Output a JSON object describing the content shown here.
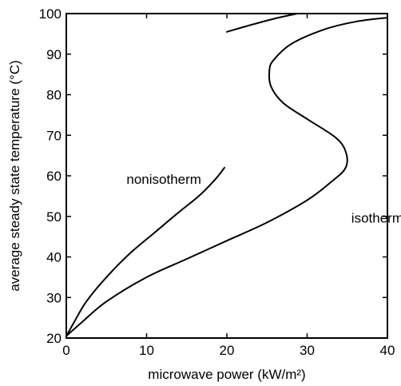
{
  "chart_data": {
    "type": "line",
    "title": "",
    "xlabel": "microwave power (kW/m²)",
    "ylabel": "average steady state temperature (°C)",
    "xlim": [
      0,
      40
    ],
    "ylim": [
      20,
      100
    ],
    "xticks": [
      0,
      10,
      20,
      30,
      40
    ],
    "yticks": [
      20,
      30,
      40,
      50,
      60,
      70,
      80,
      90,
      100
    ],
    "grid": false,
    "legend": "none",
    "series": [
      {
        "annotation": "nonisotherm",
        "x": [
          0,
          1,
          2.5,
          5,
          8,
          11,
          14,
          16.5,
          18.5,
          19.7
        ],
        "y": [
          20.5,
          24,
          29,
          35,
          41,
          46,
          51,
          55,
          59,
          62
        ],
        "x_upper_branch": [
          20,
          23,
          26,
          28.8
        ],
        "y_upper_branch": [
          95.5,
          97.2,
          98.8,
          100
        ]
      },
      {
        "annotation": "isotherm",
        "x": [
          0,
          2,
          5,
          10,
          15,
          20,
          25,
          30,
          33,
          34.8,
          34.8,
          33.5,
          30,
          27,
          25.5,
          25.3,
          25.8,
          28,
          32,
          36,
          40
        ],
        "y": [
          20.5,
          24,
          29,
          35,
          39.5,
          44,
          48.5,
          54,
          58.5,
          62,
          66,
          69.5,
          74,
          78,
          82,
          86,
          88.5,
          92.5,
          96,
          98,
          99
        ]
      }
    ],
    "annotations": [
      {
        "text": "nonisotherm",
        "x": 7.5,
        "y": 58
      },
      {
        "text": "isotherm",
        "x": 35.5,
        "y": 48.5
      }
    ]
  }
}
